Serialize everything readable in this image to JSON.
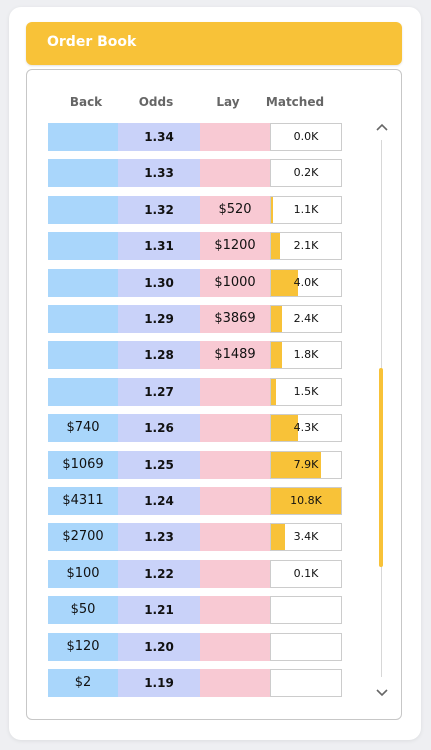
{
  "header": {
    "title": "Order Book"
  },
  "columns": {
    "back": "Back",
    "odds": "Odds",
    "lay": "Lay",
    "matched": "Matched"
  },
  "scroll": {
    "up_icon": "chevron-up-icon",
    "down_icon": "chevron-down-icon",
    "position": 0.5
  },
  "colors": {
    "accent": "#f8c238",
    "back": "#a9d6fb",
    "odds": "#c9d2f9",
    "lay": "#f8c9d3"
  },
  "rows": [
    {
      "back": "",
      "odds": "1.34",
      "lay": "",
      "matched": "0.0K",
      "fill": 0
    },
    {
      "back": "",
      "odds": "1.33",
      "lay": "",
      "matched": "0.2K",
      "fill": 0
    },
    {
      "back": "",
      "odds": "1.32",
      "lay": "$520",
      "matched": "1.1K",
      "fill": 0.03
    },
    {
      "back": "",
      "odds": "1.31",
      "lay": "$1200",
      "matched": "2.1K",
      "fill": 0.13
    },
    {
      "back": "",
      "odds": "1.30",
      "lay": "$1000",
      "matched": "4.0K",
      "fill": 0.39
    },
    {
      "back": "",
      "odds": "1.29",
      "lay": "$3869",
      "matched": "2.4K",
      "fill": 0.16
    },
    {
      "back": "",
      "odds": "1.28",
      "lay": "$1489",
      "matched": "1.8K",
      "fill": 0.16
    },
    {
      "back": "",
      "odds": "1.27",
      "lay": "",
      "matched": "1.5K",
      "fill": 0.07
    },
    {
      "back": "$740",
      "odds": "1.26",
      "lay": "",
      "matched": "4.3K",
      "fill": 0.39
    },
    {
      "back": "$1069",
      "odds": "1.25",
      "lay": "",
      "matched": "7.9K",
      "fill": 0.71
    },
    {
      "back": "$4311",
      "odds": "1.24",
      "lay": "",
      "matched": "10.8K",
      "fill": 1.0
    },
    {
      "back": "$2700",
      "odds": "1.23",
      "lay": "",
      "matched": "3.4K",
      "fill": 0.2
    },
    {
      "back": "$100",
      "odds": "1.22",
      "lay": "",
      "matched": "0.1K",
      "fill": 0
    },
    {
      "back": "$50",
      "odds": "1.21",
      "lay": "",
      "matched": "",
      "fill": 0
    },
    {
      "back": "$120",
      "odds": "1.20",
      "lay": "",
      "matched": "",
      "fill": 0
    },
    {
      "back": "$2",
      "odds": "1.19",
      "lay": "",
      "matched": "",
      "fill": 0
    }
  ]
}
